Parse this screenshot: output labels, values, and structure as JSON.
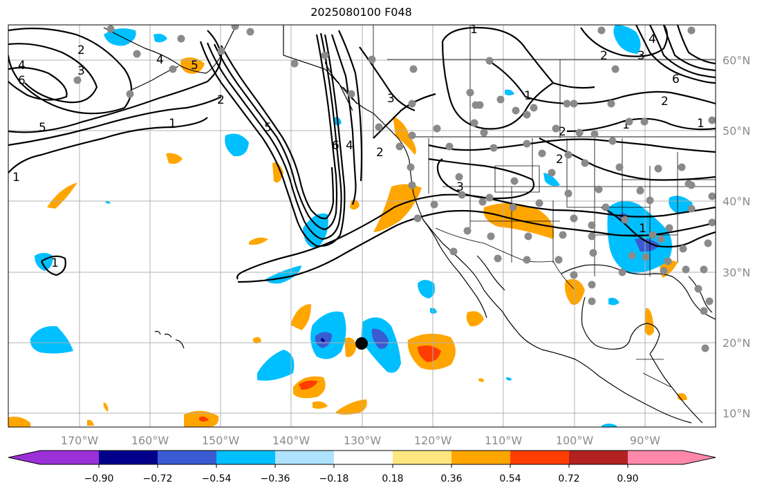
{
  "title": "2025080100 F048",
  "lon_ticks": [
    "170°W",
    "160°W",
    "150°W",
    "140°W",
    "130°W",
    "120°W",
    "110°W",
    "100°W",
    "90°W"
  ],
  "lat_ticks": [
    "60°N",
    "50°N",
    "40°N",
    "30°N",
    "20°N",
    "10°N"
  ],
  "colorbar": {
    "labels": [
      "−0.90",
      "−0.72",
      "−0.54",
      "−0.36",
      "−0.18",
      "0.18",
      "0.36",
      "0.54",
      "0.72",
      "0.90"
    ],
    "colors": [
      "#9b30d9",
      "#00008b",
      "#3a5bd1",
      "#00bfff",
      "#aee2ff",
      "#ffffff",
      "#ffe680",
      "#ffa500",
      "#ff3d00",
      "#b22222",
      "#ff88aa"
    ]
  },
  "contour_labels": [
    "2",
    "4",
    "3",
    "6",
    "5",
    "1",
    "5",
    "2",
    "4",
    "5",
    "1",
    "1",
    "6",
    "4",
    "2",
    "3",
    "1",
    "2",
    "2",
    "3",
    "2",
    "1",
    "1",
    "2",
    "3",
    "4",
    "6",
    "1",
    "1"
  ],
  "marker": {
    "lon": -130,
    "lat": 20,
    "label": ""
  }
}
